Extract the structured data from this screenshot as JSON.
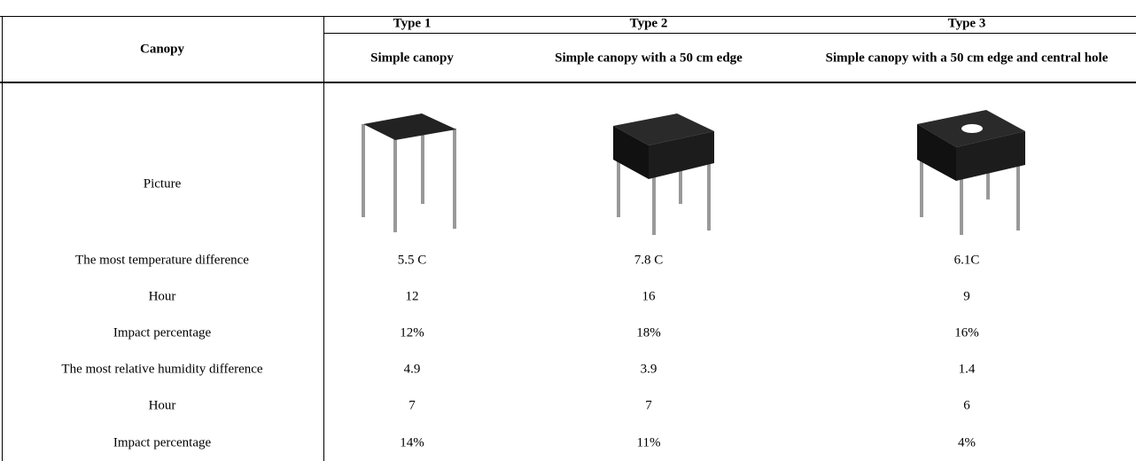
{
  "header": {
    "row_label": "Canopy",
    "types": [
      {
        "type": "Type 1",
        "name": "Simple canopy"
      },
      {
        "type": "Type 2",
        "name": "Simple canopy with a 50 cm edge"
      },
      {
        "type": "Type 3",
        "name": "Simple canopy with a 50 cm edge and central hole"
      }
    ]
  },
  "picture_label": "Picture",
  "rows": [
    {
      "label": "The most temperature difference",
      "values": [
        "5.5 C",
        "7.8 C",
        "6.1C"
      ]
    },
    {
      "label": "Hour",
      "values": [
        "12",
        "16",
        "9"
      ]
    },
    {
      "label": "Impact percentage",
      "values": [
        "12%",
        "18%",
        "16%"
      ]
    },
    {
      "label": "The most relative humidity difference",
      "values": [
        "4.9",
        "3.9",
        "1.4"
      ]
    },
    {
      "label": "Hour",
      "values": [
        "7",
        "7",
        "6"
      ]
    },
    {
      "label": "Impact percentage",
      "values": [
        "14%",
        "11%",
        "4%"
      ]
    }
  ]
}
